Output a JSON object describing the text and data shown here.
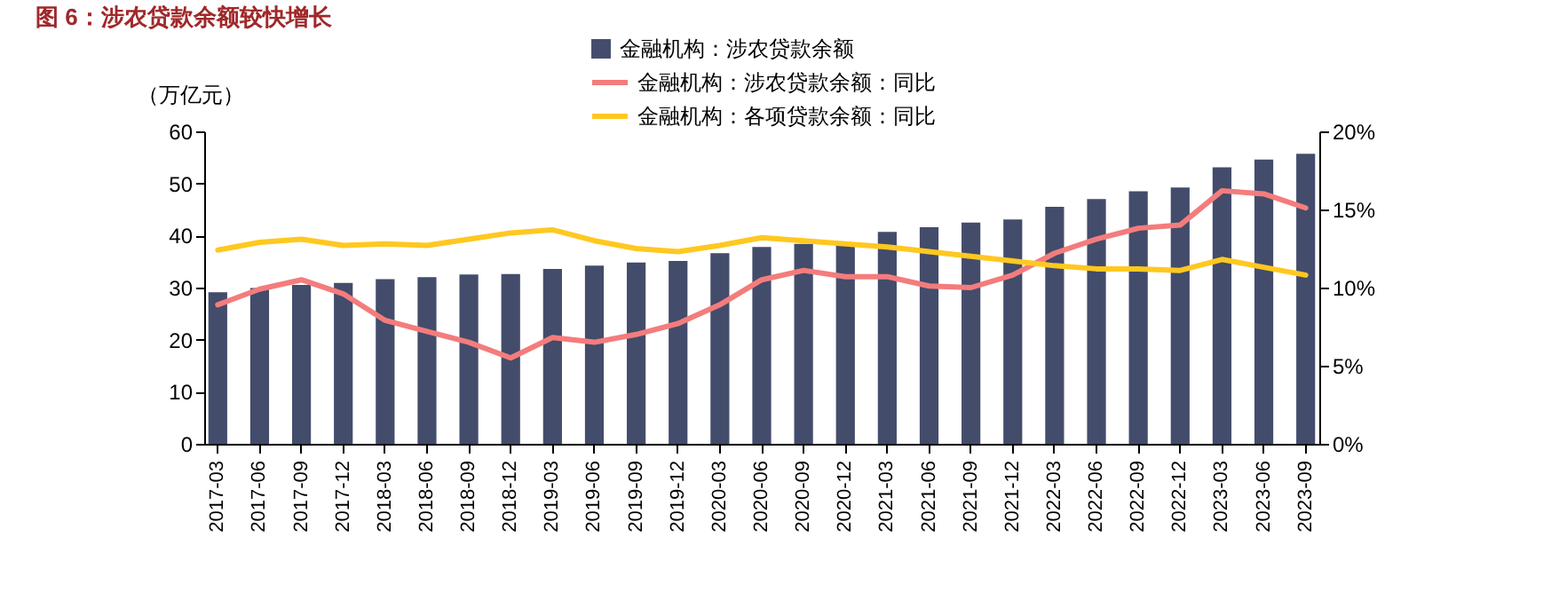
{
  "chart_data": {
    "type": "bar",
    "title": "图 6：涉农贷款余额较快增长",
    "ylabel": "（万亿元）",
    "categories": [
      "2017-03",
      "2017-06",
      "2017-09",
      "2017-12",
      "2018-03",
      "2018-06",
      "2018-09",
      "2018-12",
      "2019-03",
      "2019-06",
      "2019-09",
      "2019-12",
      "2020-03",
      "2020-06",
      "2020-09",
      "2020-12",
      "2021-03",
      "2021-06",
      "2021-09",
      "2021-12",
      "2022-03",
      "2022-06",
      "2022-09",
      "2022-12",
      "2023-03",
      "2023-06",
      "2023-09"
    ],
    "series": [
      {
        "name": "金融机构：涉农贷款余额",
        "color": "#434c6b",
        "values": [
          29.1,
          29.9,
          30.5,
          30.9,
          31.6,
          32.0,
          32.5,
          32.6,
          33.6,
          34.2,
          34.8,
          35.1,
          36.6,
          37.8,
          38.4,
          38.6,
          40.7,
          41.6,
          42.5,
          43.1,
          45.5,
          47.0,
          48.5,
          49.2,
          53.1,
          54.6,
          55.7
        ]
      },
      {
        "name": "金融机构：涉农贷款余额：同比",
        "type": "line",
        "axis": "y2",
        "color": "#f47c7c",
        "values": [
          8.9,
          9.9,
          10.5,
          9.6,
          7.9,
          7.2,
          6.5,
          5.5,
          6.8,
          6.5,
          7.0,
          7.7,
          8.9,
          10.5,
          11.1,
          10.7,
          10.7,
          10.1,
          10.0,
          10.8,
          12.2,
          13.1,
          13.8,
          14.0,
          16.2,
          16.0,
          15.1
        ]
      },
      {
        "name": "金融机构：各项贷款余额：同比",
        "type": "line",
        "axis": "y2",
        "color": "#ffc820",
        "values": [
          12.4,
          12.9,
          13.1,
          12.7,
          12.8,
          12.7,
          13.1,
          13.5,
          13.7,
          13.0,
          12.5,
          12.3,
          12.7,
          13.2,
          13.0,
          12.8,
          12.6,
          12.3,
          12.0,
          11.7,
          11.4,
          11.2,
          11.2,
          11.1,
          11.8,
          11.3,
          10.8
        ]
      }
    ],
    "ylim": [
      0,
      60
    ],
    "yticks": [
      0,
      10,
      20,
      30,
      40,
      50,
      60
    ],
    "y2lim": [
      0,
      20
    ],
    "y2ticks": [
      {
        "value": 0,
        "label": "0%"
      },
      {
        "value": 5,
        "label": "5%"
      },
      {
        "value": 10,
        "label": "10%"
      },
      {
        "value": 15,
        "label": "15%"
      },
      {
        "value": 20,
        "label": "20%"
      }
    ],
    "legend": "top",
    "grid": false
  }
}
